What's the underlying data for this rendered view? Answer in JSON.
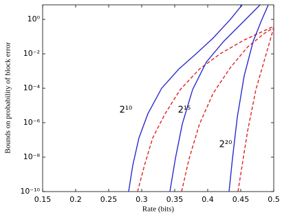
{
  "chart_data": {
    "type": "line",
    "xlabel": "Rate (bits)",
    "ylabel": "Bounds on probability of block error",
    "xlim": [
      0.15,
      0.5
    ],
    "ylim": [
      1e-10,
      7
    ],
    "ylog": true,
    "grid": false,
    "xticks": [
      0.15,
      0.2,
      0.25,
      0.3,
      0.35,
      0.4,
      0.45,
      0.5
    ],
    "yticks": [
      {
        "value": 1e-10,
        "label": "10⁻¹⁰"
      },
      {
        "value": 1e-08,
        "label": "10⁻⁸"
      },
      {
        "value": 1e-06,
        "label": "10⁻⁶"
      },
      {
        "value": 0.0001,
        "label": "10⁻⁴"
      },
      {
        "value": 0.01,
        "label": "10⁻²"
      },
      {
        "value": 1,
        "label": "10⁰"
      }
    ],
    "series": [
      {
        "color": "#2b2bcc",
        "dash": false,
        "x": [
          0.2802,
          0.2865,
          0.2958,
          0.3094,
          0.3302,
          0.3563,
          0.3823,
          0.4083,
          0.4344,
          0.4521
        ],
        "values": [
          1e-10,
          3.3e-09,
          1.3e-07,
          3.3e-06,
          0.0001,
          0.0013,
          0.01,
          0.083,
          1,
          6.9
        ]
      },
      {
        "color": "#dd2222",
        "dash": true,
        "x": [
          0.2938,
          0.3042,
          0.3167,
          0.3354,
          0.3583,
          0.3875,
          0.4188,
          0.4552,
          0.5
        ],
        "values": [
          1e-10,
          3.3e-09,
          1.3e-07,
          3.3e-06,
          8.3e-05,
          0.0013,
          0.01,
          0.063,
          0.4
        ]
      },
      {
        "color": "#2b2bcc",
        "dash": false,
        "x": [
          0.3427,
          0.351,
          0.3615,
          0.3771,
          0.3979,
          0.424,
          0.45,
          0.4792
        ],
        "values": [
          1e-10,
          8.3e-09,
          8.3e-07,
          8.3e-05,
          0.0033,
          0.052,
          0.52,
          6.9
        ]
      },
      {
        "color": "#dd2222",
        "dash": true,
        "x": [
          0.3604,
          0.3719,
          0.3875,
          0.4083,
          0.4344,
          0.4604,
          0.4865,
          0.5
        ],
        "values": [
          1e-10,
          8.3e-09,
          8.3e-07,
          5.2e-05,
          0.0016,
          0.025,
          0.16,
          0.33
        ]
      },
      {
        "color": "#2b2bcc",
        "dash": false,
        "x": [
          0.4323,
          0.4375,
          0.4448,
          0.4552,
          0.4688,
          0.4813,
          0.4917
        ],
        "values": [
          1e-10,
          8.3e-09,
          2.1e-06,
          0.00052,
          0.052,
          0.83,
          6.9
        ]
      },
      {
        "color": "#dd2222",
        "dash": true,
        "x": [
          0.4458,
          0.4521,
          0.4604,
          0.4729,
          0.4865,
          0.5
        ],
        "values": [
          1e-10,
          3.3e-09,
          3.3e-07,
          8.3e-05,
          0.0052,
          0.33
        ]
      }
    ],
    "annotations": [
      "2¹⁰",
      "2¹⁵",
      "2²⁰"
    ]
  }
}
